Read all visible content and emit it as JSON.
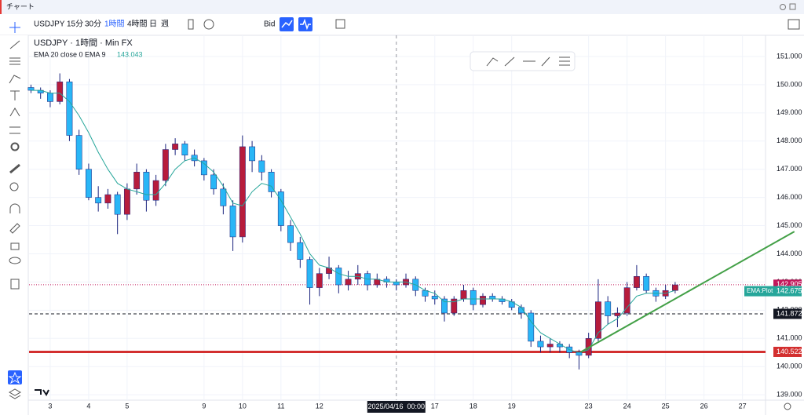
{
  "window_title": "チャート",
  "toolbar": {
    "symbol": "USDJPY",
    "intervals": [
      "15分",
      "30分",
      "1時間",
      "4時間",
      "日",
      "週"
    ],
    "active_interval": "1時間",
    "price_type": "Bid"
  },
  "chart_data": {
    "type": "candlestick",
    "legend": {
      "symbol_line": "USDJPY · 1時間 · Min FX",
      "indicator": "EMA 20 close 0 EMA 9",
      "indicator_value": 143.043
    },
    "x": [
      -0.5,
      -0.25,
      0,
      0.25,
      0.5,
      0.75,
      1,
      1.25,
      1.5,
      1.75,
      2,
      2.25,
      2.5,
      2.75,
      3,
      3.25,
      3.5,
      3.75,
      4,
      4.25,
      4.5,
      4.75,
      5,
      5.25,
      5.5,
      5.75,
      6,
      6.25,
      6.5,
      6.75,
      7,
      7.25,
      7.5,
      7.75,
      8,
      8.25,
      8.5,
      8.75,
      9,
      9.25,
      9.5,
      9.75,
      10,
      10.25,
      10.5,
      10.75,
      11,
      11.25,
      11.5,
      11.75,
      12,
      12.25,
      12.5,
      12.75,
      13,
      13.25,
      13.5,
      13.75,
      14,
      14.25,
      14.5,
      14.75,
      15,
      15.25,
      15.5,
      15.75,
      16,
      16.25
    ],
    "ohlc": [
      [
        149.9,
        150.0,
        149.7,
        149.8
      ],
      [
        149.8,
        149.9,
        149.5,
        149.7
      ],
      [
        149.7,
        149.8,
        149.2,
        149.4
      ],
      [
        149.4,
        150.4,
        149.3,
        150.1
      ],
      [
        150.1,
        150.2,
        148.0,
        148.2
      ],
      [
        148.2,
        148.4,
        146.8,
        147.0
      ],
      [
        147.0,
        147.2,
        145.9,
        146.0
      ],
      [
        146.0,
        146.4,
        145.5,
        145.8
      ],
      [
        145.8,
        146.3,
        145.6,
        146.1
      ],
      [
        146.1,
        146.2,
        144.7,
        145.4
      ],
      [
        145.4,
        146.5,
        145.2,
        146.3
      ],
      [
        146.3,
        147.2,
        146.1,
        146.9
      ],
      [
        146.9,
        147.0,
        145.5,
        145.9
      ],
      [
        145.9,
        146.8,
        145.7,
        146.6
      ],
      [
        146.6,
        147.9,
        146.4,
        147.7
      ],
      [
        147.7,
        148.1,
        147.5,
        147.9
      ],
      [
        147.9,
        148.0,
        147.3,
        147.5
      ],
      [
        147.5,
        147.7,
        147.1,
        147.3
      ],
      [
        147.3,
        147.4,
        146.6,
        146.8
      ],
      [
        146.8,
        147.0,
        146.1,
        146.3
      ],
      [
        146.3,
        146.5,
        145.4,
        145.7
      ],
      [
        145.7,
        145.9,
        144.1,
        144.6
      ],
      [
        144.6,
        148.2,
        144.4,
        147.8
      ],
      [
        147.8,
        148.0,
        146.9,
        147.3
      ],
      [
        147.3,
        147.5,
        146.6,
        146.9
      ],
      [
        146.9,
        147.0,
        146.0,
        146.2
      ],
      [
        146.2,
        146.3,
        144.8,
        145.0
      ],
      [
        145.0,
        145.2,
        144.1,
        144.4
      ],
      [
        144.4,
        144.6,
        143.5,
        143.8
      ],
      [
        143.8,
        143.9,
        142.2,
        142.8
      ],
      [
        142.8,
        143.5,
        142.5,
        143.3
      ],
      [
        143.3,
        143.9,
        143.1,
        143.5
      ],
      [
        143.5,
        143.6,
        142.6,
        142.9
      ],
      [
        142.9,
        143.4,
        142.7,
        143.1
      ],
      [
        143.1,
        143.6,
        142.9,
        143.3
      ],
      [
        143.3,
        143.4,
        142.7,
        142.9
      ],
      [
        142.9,
        143.3,
        142.8,
        143.1
      ],
      [
        143.1,
        143.2,
        142.8,
        143.0
      ],
      [
        143.0,
        143.1,
        142.7,
        142.9
      ],
      [
        142.9,
        143.3,
        142.8,
        143.1
      ],
      [
        143.1,
        143.2,
        142.5,
        142.7
      ],
      [
        142.7,
        142.8,
        142.3,
        142.5
      ],
      [
        142.5,
        142.7,
        142.2,
        142.4
      ],
      [
        142.4,
        142.5,
        141.6,
        141.9
      ],
      [
        141.9,
        142.5,
        141.8,
        142.4
      ],
      [
        142.4,
        142.9,
        142.3,
        142.7
      ],
      [
        142.7,
        142.8,
        142.0,
        142.2
      ],
      [
        142.2,
        142.6,
        142.1,
        142.5
      ],
      [
        142.5,
        142.6,
        142.3,
        142.4
      ],
      [
        142.4,
        142.5,
        142.2,
        142.3
      ],
      [
        142.3,
        142.4,
        142.0,
        142.1
      ],
      [
        142.1,
        142.2,
        141.7,
        141.9
      ],
      [
        141.9,
        142.0,
        140.7,
        140.9
      ],
      [
        140.9,
        141.1,
        140.5,
        140.7
      ],
      [
        140.7,
        141.0,
        140.5,
        140.8
      ],
      [
        140.8,
        140.9,
        140.5,
        140.7
      ],
      [
        140.7,
        140.8,
        140.3,
        140.5
      ],
      [
        140.5,
        140.6,
        139.9,
        140.4
      ],
      [
        140.4,
        141.2,
        140.3,
        141.0
      ],
      [
        141.0,
        143.1,
        140.9,
        142.3
      ],
      [
        142.3,
        142.5,
        141.5,
        141.8
      ],
      [
        141.8,
        142.1,
        141.4,
        141.9
      ],
      [
        141.9,
        143.0,
        141.8,
        142.8
      ],
      [
        142.8,
        143.6,
        142.7,
        143.2
      ],
      [
        143.2,
        143.3,
        142.6,
        142.7
      ],
      [
        142.7,
        142.8,
        142.3,
        142.5
      ],
      [
        142.5,
        142.9,
        142.4,
        142.7
      ],
      [
        142.7,
        143.0,
        142.6,
        142.9
      ]
    ],
    "up_color": "#b71c3c",
    "down_color": "#29b6f6",
    "ema": {
      "name": "EMA:Plot",
      "color": "#26a69a",
      "last_value": 142.675,
      "values": [
        149.8,
        149.8,
        149.7,
        149.7,
        149.4,
        148.9,
        148.3,
        147.6,
        147.0,
        146.5,
        146.3,
        146.2,
        146.1,
        146.1,
        146.5,
        147.0,
        147.3,
        147.4,
        147.2,
        146.9,
        146.4,
        145.8,
        145.7,
        146.2,
        146.5,
        146.4,
        145.9,
        145.3,
        144.7,
        144.0,
        143.6,
        143.5,
        143.3,
        143.2,
        143.2,
        143.1,
        143.1,
        143.0,
        143.0,
        143.0,
        142.9,
        142.7,
        142.6,
        142.3,
        142.3,
        142.4,
        142.4,
        142.4,
        142.4,
        142.4,
        142.3,
        142.1,
        141.6,
        141.2,
        141.0,
        140.8,
        140.6,
        140.5,
        140.6,
        141.2,
        141.5,
        141.7,
        142.1,
        142.5,
        142.6,
        142.6,
        142.6,
        142.7
      ]
    },
    "trendline": {
      "color": "#43a047",
      "x": [
        13.8,
        19.35
      ],
      "y": [
        140.52,
        144.79
      ]
    },
    "price_lines": [
      {
        "value": 142.905,
        "color": "#c2185b",
        "style": "dotted"
      },
      {
        "value": 141.872,
        "color": "#131722",
        "style": "dashed"
      },
      {
        "value": 140.522,
        "color": "#d32f2f",
        "style": "solid"
      }
    ],
    "crosshair": {
      "value": 9,
      "label": "2025/04/16  00:00"
    },
    "xlim": [
      -0.55,
      18.6
    ],
    "ylim": [
      138.81,
      151.75
    ],
    "xticks": [
      {
        "value": 0,
        "label": "3"
      },
      {
        "value": 1,
        "label": "4"
      },
      {
        "value": 2,
        "label": "5"
      },
      {
        "value": 4,
        "label": "9"
      },
      {
        "value": 5,
        "label": "10"
      },
      {
        "value": 6,
        "label": "11"
      },
      {
        "value": 7,
        "label": "12"
      },
      {
        "value": 10,
        "label": "17"
      },
      {
        "value": 11,
        "label": "18"
      },
      {
        "value": 12,
        "label": "19"
      },
      {
        "value": 14,
        "label": "23"
      },
      {
        "value": 15,
        "label": "24"
      },
      {
        "value": 16,
        "label": "25"
      },
      {
        "value": 17,
        "label": "26"
      },
      {
        "value": 18,
        "label": "27"
      }
    ],
    "yticks": [
      {
        "value": 139,
        "label": "139.000"
      },
      {
        "value": 140,
        "label": "140.000"
      },
      {
        "value": 141,
        "label": "141.000"
      },
      {
        "value": 142,
        "label": "142.000"
      },
      {
        "value": 143,
        "label": "143.000"
      },
      {
        "value": 144,
        "label": "144.000"
      },
      {
        "value": 145,
        "label": "145.000"
      },
      {
        "value": 146,
        "label": "146.000"
      },
      {
        "value": 147,
        "label": "147.000"
      },
      {
        "value": 148,
        "label": "148.000"
      },
      {
        "value": 149,
        "label": "149.000"
      },
      {
        "value": 150,
        "label": "150.000"
      },
      {
        "value": 151,
        "label": "151.000"
      }
    ],
    "grid": true
  }
}
